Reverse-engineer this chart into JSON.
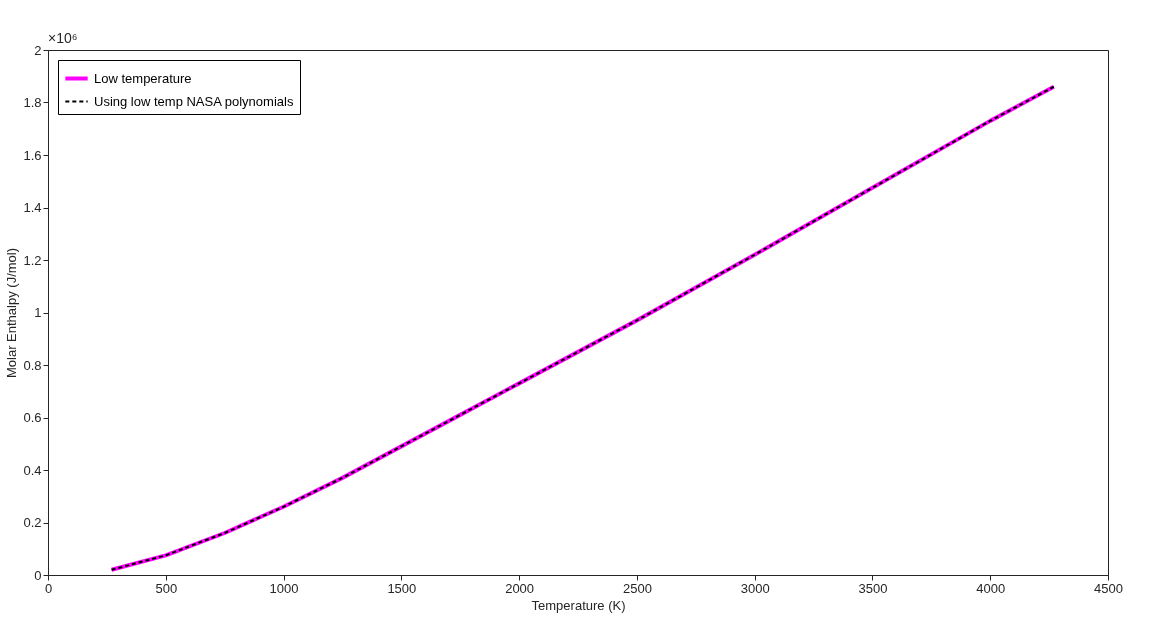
{
  "chart_data": {
    "type": "line",
    "xlabel": "Temperature (K)",
    "ylabel": "Molar Enthalpy (J/mol)",
    "annotations": [
      "×10⁶"
    ],
    "x": [
      270,
      500,
      750,
      1000,
      1250,
      1500,
      1750,
      2000,
      2500,
      3000,
      3500,
      4000,
      4270
    ],
    "series": [
      {
        "name": "Low temperature",
        "color": "#ff00ff",
        "line_style": "solid",
        "values": [
          0.02,
          0.075,
          0.16,
          0.26,
          0.37,
          0.49,
          0.61,
          0.73,
          0.97,
          1.22,
          1.475,
          1.73,
          1.86
        ]
      },
      {
        "name": "Using low temp NASA polynomials",
        "color": "#000000",
        "line_style": "dashed",
        "values": [
          0.02,
          0.075,
          0.16,
          0.26,
          0.37,
          0.49,
          0.61,
          0.73,
          0.97,
          1.22,
          1.475,
          1.73,
          1.86
        ]
      }
    ],
    "xlim": [
      0,
      4500
    ],
    "xticks": [
      0,
      500,
      1000,
      1500,
      2000,
      2500,
      3000,
      3500,
      4000,
      4500
    ],
    "ylim": [
      0,
      2
    ],
    "yticks": [
      0,
      0.2,
      0.4,
      0.6,
      0.8,
      1,
      1.2,
      1.4,
      1.6,
      1.8,
      2
    ],
    "legend": "top left",
    "grid": false,
    "marker": "none"
  }
}
